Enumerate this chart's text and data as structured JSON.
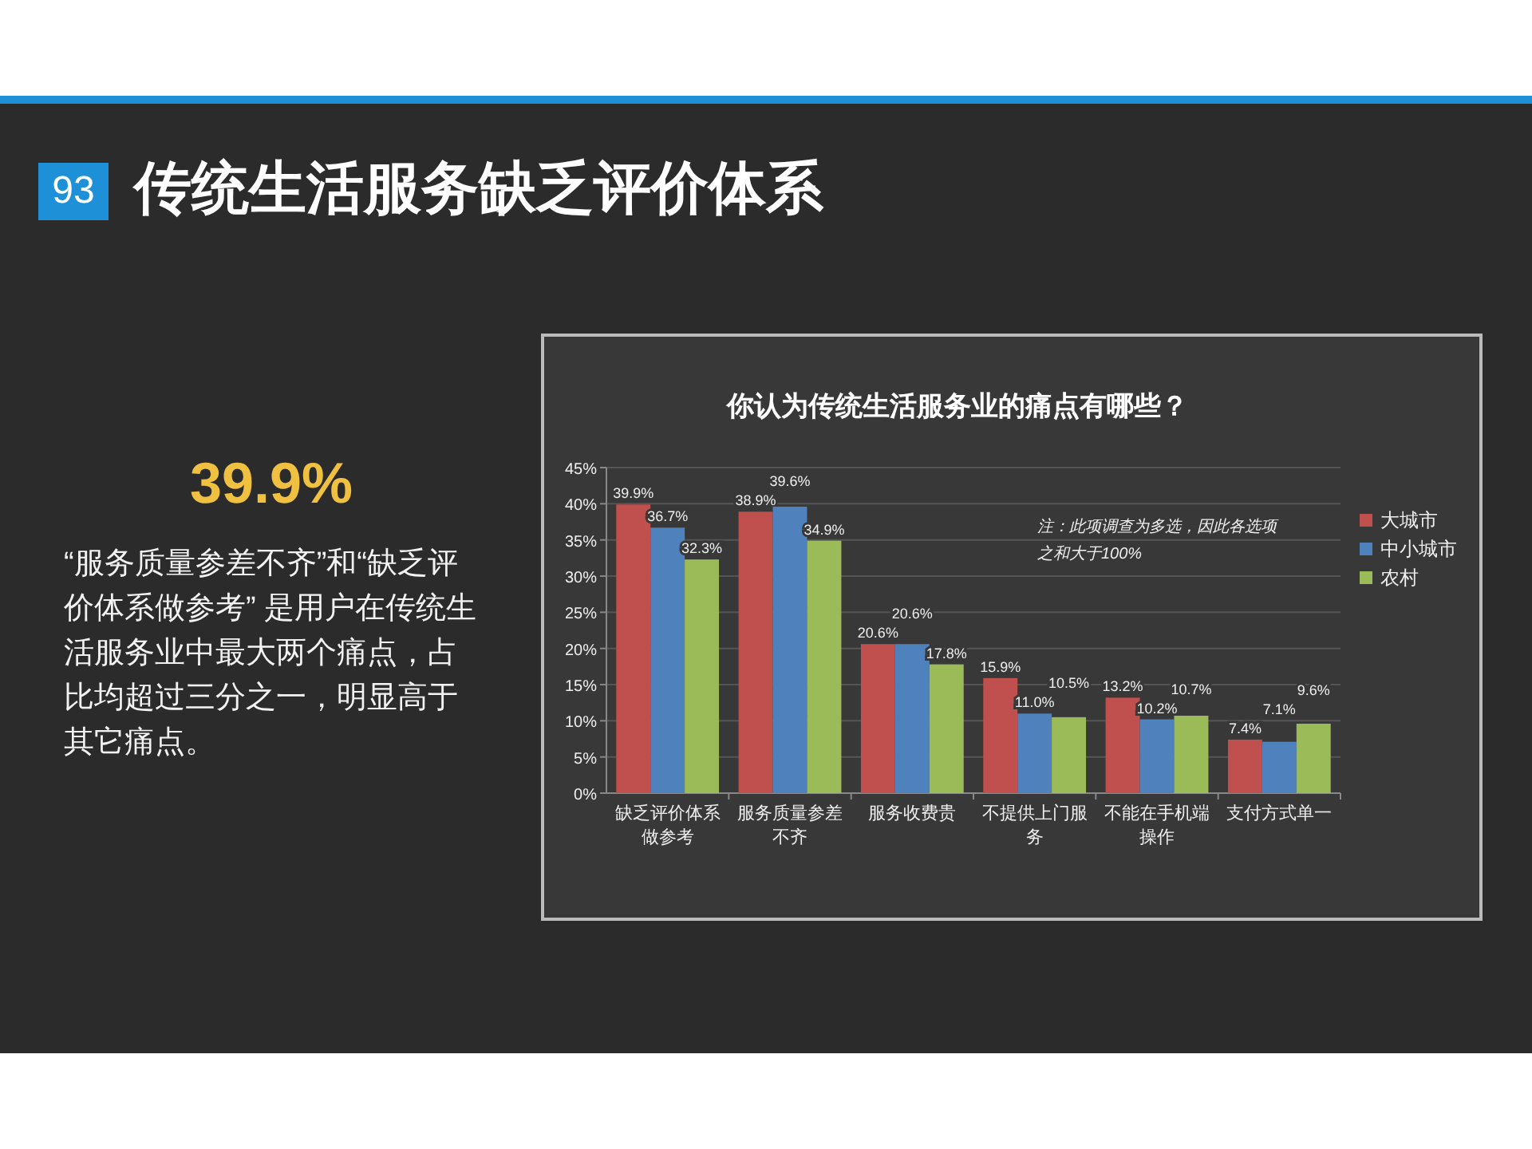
{
  "chart_data": {
    "type": "bar",
    "title": "传统生活服务缺乏评价体系",
    "subtitle": "你认为传统生活服务业的痛点有哪些？",
    "categories": [
      "缺乏评价体系做参考",
      "服务质量参差不齐",
      "服务收费贵",
      "不提供上门服务",
      "不能在手机端操作",
      "支付方式单一"
    ],
    "series": [
      {
        "name": "大城市",
        "color": "#c0504d",
        "values": [
          39.9,
          38.9,
          20.6,
          15.9,
          13.2,
          7.4
        ]
      },
      {
        "name": "中小城市",
        "color": "#4f81bd",
        "values": [
          36.7,
          39.6,
          20.6,
          11.0,
          10.2,
          7.1
        ]
      },
      {
        "name": "农村",
        "color": "#9bbb59",
        "values": [
          32.3,
          34.9,
          17.8,
          10.5,
          10.7,
          9.6
        ]
      }
    ],
    "ylim": [
      0,
      45
    ],
    "yticks": [
      {
        "value": 0,
        "label": "0%"
      },
      {
        "value": 5,
        "label": "5%"
      },
      {
        "value": 10,
        "label": "10%"
      },
      {
        "value": 15,
        "label": "15%"
      },
      {
        "value": 20,
        "label": "20%"
      },
      {
        "value": 25,
        "label": "25%"
      },
      {
        "value": 30,
        "label": "30%"
      },
      {
        "value": 35,
        "label": "35%"
      },
      {
        "value": 40,
        "label": "40%"
      },
      {
        "value": 45,
        "label": "45%"
      }
    ],
    "value_labels": [
      [
        "39.9%",
        "38.9%",
        "20.6%",
        "15.9%",
        "13.2%",
        "7.4%"
      ],
      [
        "36.7%",
        "39.6%",
        "20.6%",
        "11.0%",
        "10.2%",
        "7.1%"
      ],
      [
        "32.3%",
        "34.9%",
        "17.8%",
        "10.5%",
        "10.7%",
        "9.6%"
      ]
    ],
    "grid": "y",
    "legend": "right",
    "annotations": [
      "93",
      "39.9%",
      "“服务质量参差不齐”和“缺乏评价体系做参考” 是用户在传统生活服务业中最大两个痛点，占比均超过三分之一，明显高于其它痛点。",
      "注：此项调查为多选，因此各选项之和大于100%"
    ]
  }
}
